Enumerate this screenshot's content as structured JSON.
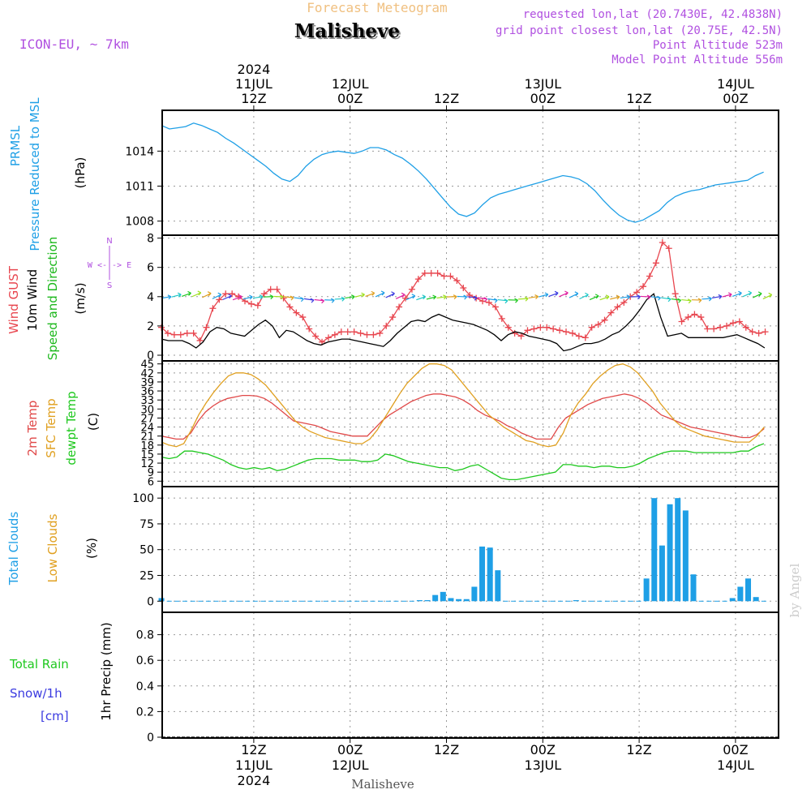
{
  "header": {
    "title": "Forecast Meteogram",
    "station": "Malisheve",
    "model": "ICON-EU, ~ 7km",
    "requested": "requested lon,lat (20.7430E, 42.4838N)",
    "grid_point": "grid point closest lon,lat (20.75E, 42.5N)",
    "point_altitude": "Point Altitude 523m",
    "model_altitude": "Model Point Altitude 556m",
    "credit": "by Angel",
    "footer_station": "Malisheve"
  },
  "time_axis": {
    "top_ticks": [
      {
        "hour": 12,
        "lines": [
          "2024",
          "11JUL",
          "12Z"
        ]
      },
      {
        "hour": 24,
        "lines": [
          "12JUL",
          "00Z"
        ]
      },
      {
        "hour": 36,
        "lines": [
          "12Z"
        ]
      },
      {
        "hour": 48,
        "lines": [
          "13JUL",
          "00Z"
        ]
      },
      {
        "hour": 60,
        "lines": [
          "12Z"
        ]
      },
      {
        "hour": 72,
        "lines": [
          "14JUL",
          "00Z"
        ]
      }
    ],
    "bottom_ticks": [
      {
        "hour": 12,
        "lines": [
          "12Z",
          "11JUL",
          "2024"
        ]
      },
      {
        "hour": 24,
        "lines": [
          "00Z",
          "12JUL"
        ]
      },
      {
        "hour": 36,
        "lines": [
          "12Z"
        ]
      },
      {
        "hour": 48,
        "lines": [
          "00Z",
          "13JUL"
        ]
      },
      {
        "hour": 60,
        "lines": [
          "12Z"
        ]
      },
      {
        "hour": 72,
        "lines": [
          "00Z",
          "14JUL"
        ]
      }
    ]
  },
  "colors": {
    "pressure": "#1e9fe6",
    "gust": "#e8464f",
    "wind10": "#000000",
    "wind_axis_label": "#1db81d",
    "temp2m": "#e04848",
    "sfc_temp": "#e0a020",
    "dewpt": "#1ec81e",
    "clouds": "#1e9fe6",
    "low_clouds": "#e0a020",
    "rain": "#1ec81e",
    "snow": "#3a3ae0",
    "header_purple": "#b050e0",
    "title_orange": "#f0c080"
  },
  "panel_labels": {
    "pressure": {
      "line1": "PRMSL",
      "line2": "Pressure Reduced to MSL",
      "unit": "(hPa)"
    },
    "wind": {
      "gust": "Wind GUST",
      "ten": "10m Wind",
      "speed": "Speed and Direction",
      "unit": "(m/s)",
      "compass_n": "N",
      "compass_s": "S",
      "compass_we": "W <-|-> E"
    },
    "temp": {
      "t2m": "2m Temp",
      "sfc": "SFC Temp",
      "dew": "dewpt Temp",
      "unit": "(C)"
    },
    "clouds": {
      "total": "Total Clouds",
      "low": "Low Clouds",
      "unit": "(%)"
    },
    "precip": {
      "rain": "Total Rain",
      "snow": "Snow/1h",
      "snow_unit": "[cm]",
      "axis": "1hr Precip (mm)"
    }
  },
  "chart_data": [
    {
      "type": "line",
      "title": "PRMSL Pressure Reduced to MSL",
      "ylabel": "(hPa)",
      "ylim": [
        1007,
        1017.5
      ],
      "yticks": [
        "1008",
        "1011",
        "1014"
      ],
      "x_start_hour": 1,
      "x_step_hours": 1,
      "series": [
        {
          "name": "PRMSL",
          "values": [
            1016.2,
            1015.9,
            1016.0,
            1016.1,
            1016.4,
            1016.2,
            1015.9,
            1015.6,
            1015.1,
            1014.7,
            1014.2,
            1013.7,
            1013.2,
            1012.7,
            1012.1,
            1011.6,
            1011.4,
            1011.9,
            1012.7,
            1013.3,
            1013.7,
            1013.9,
            1014.0,
            1013.9,
            1013.8,
            1014.0,
            1014.3,
            1014.3,
            1014.1,
            1013.7,
            1013.4,
            1012.9,
            1012.3,
            1011.6,
            1010.8,
            1010.0,
            1009.2,
            1008.6,
            1008.4,
            1008.7,
            1009.4,
            1010.0,
            1010.3,
            1010.5,
            1010.7,
            1010.9,
            1011.1,
            1011.3,
            1011.5,
            1011.7,
            1011.9,
            1011.8,
            1011.6,
            1011.2,
            1010.6,
            1009.8,
            1009.1,
            1008.5,
            1008.1,
            1007.9,
            1008.1,
            1008.5,
            1008.9,
            1009.6,
            1010.1,
            1010.4,
            1010.6,
            1010.7,
            1010.9,
            1011.1,
            1011.2,
            1011.3,
            1011.4,
            1011.5,
            1011.9,
            1012.2
          ]
        }
      ]
    },
    {
      "type": "line",
      "title": "Wind GUST / 10m Wind Speed and Direction",
      "ylabel": "(m/s)",
      "ylim": [
        0,
        8.2
      ],
      "yticks": [
        "0",
        "2",
        "4",
        "6",
        "8"
      ],
      "x_start_hour": 1,
      "x_step_hours": 1,
      "series": [
        {
          "name": "Wind GUST",
          "values": [
            1.9,
            1.5,
            1.4,
            1.4,
            1.5,
            1.5,
            1.0,
            1.9,
            3.2,
            3.8,
            4.2,
            4.2,
            4.0,
            3.7,
            3.5,
            3.4,
            4.2,
            4.5,
            4.5,
            3.9,
            3.3,
            2.9,
            2.6,
            1.8,
            1.3,
            0.9,
            1.2,
            1.4,
            1.6,
            1.6,
            1.6,
            1.5,
            1.4,
            1.4,
            1.5,
            2.0,
            2.6,
            3.3,
            3.9,
            4.5,
            5.2,
            5.6,
            5.6,
            5.6,
            5.4,
            5.4,
            5.1,
            4.6,
            4.1,
            3.9,
            3.7,
            3.6,
            3.3,
            2.5,
            1.9,
            1.5,
            1.3,
            1.7,
            1.8,
            1.9,
            1.9,
            1.8,
            1.7,
            1.6,
            1.5,
            1.3,
            1.2,
            1.9,
            2.1,
            2.4,
            2.9,
            3.3,
            3.6,
            4.0,
            4.3,
            4.7,
            5.4,
            6.3,
            7.7,
            7.3,
            4.2,
            2.3,
            2.6,
            2.8,
            2.6,
            1.8,
            1.8,
            1.9,
            2.0,
            2.2,
            2.3,
            1.9,
            1.6,
            1.5,
            1.6
          ]
        },
        {
          "name": "10m Wind",
          "values": [
            1.1,
            1.0,
            1.0,
            1.0,
            0.8,
            0.5,
            0.9,
            1.6,
            1.9,
            1.8,
            1.5,
            1.4,
            1.3,
            1.7,
            2.1,
            2.4,
            2.0,
            1.2,
            1.7,
            1.6,
            1.3,
            1.0,
            0.8,
            0.7,
            0.9,
            1.0,
            1.1,
            1.1,
            1.0,
            0.9,
            0.8,
            0.7,
            0.6,
            1.0,
            1.5,
            1.9,
            2.3,
            2.4,
            2.3,
            2.6,
            2.8,
            2.6,
            2.4,
            2.3,
            2.2,
            2.1,
            1.9,
            1.7,
            1.4,
            1.0,
            1.4,
            1.6,
            1.5,
            1.3,
            1.2,
            1.1,
            1.0,
            0.8,
            0.3,
            0.4,
            0.6,
            0.8,
            0.8,
            0.9,
            1.1,
            1.4,
            1.6,
            2.0,
            2.5,
            3.1,
            3.8,
            4.2,
            2.6,
            1.3,
            1.4,
            1.5,
            1.2,
            1.2,
            1.2,
            1.2,
            1.2,
            1.2,
            1.3,
            1.4,
            1.2,
            1.0,
            0.8,
            0.5
          ]
        }
      ]
    },
    {
      "type": "line",
      "title": "2m Temp / SFC Temp / dewpt Temp",
      "ylabel": "(C)",
      "ylim": [
        5,
        46
      ],
      "yticks": [
        "6",
        "9",
        "12",
        "15",
        "18",
        "21",
        "24",
        "27",
        "30",
        "33",
        "36",
        "39",
        "42",
        "45"
      ],
      "x_start_hour": 1,
      "x_step_hours": 1,
      "series": [
        {
          "name": "2m Temp",
          "values": [
            21,
            20.5,
            20,
            20,
            22,
            26,
            29,
            31,
            32.5,
            33.5,
            34,
            34.5,
            34.5,
            34.3,
            33.5,
            32,
            30,
            28,
            26,
            25.5,
            25,
            24.5,
            23.5,
            22.5,
            22,
            21.5,
            21,
            21,
            21,
            23.5,
            26,
            28,
            29.5,
            31,
            32.5,
            33.5,
            34.5,
            35,
            35,
            34.5,
            34,
            33,
            31.5,
            29.5,
            28,
            27,
            26,
            24.5,
            23.5,
            22,
            21,
            20,
            20,
            20,
            24,
            27,
            28.5,
            30,
            31.5,
            32.5,
            33.5,
            34,
            34.5,
            35,
            34.5,
            33.5,
            32,
            30,
            28,
            27,
            26,
            25,
            24,
            23.5,
            23,
            22.5,
            22,
            21.5,
            21,
            20.5,
            20.5,
            21.5,
            23.5
          ]
        },
        {
          "name": "SFC Temp",
          "values": [
            19,
            18,
            17.5,
            18.5,
            23,
            28,
            32,
            35.5,
            38.5,
            41,
            42,
            42,
            41.5,
            40,
            38,
            35,
            32,
            29,
            26,
            24,
            22.5,
            21.5,
            20.5,
            20,
            19.5,
            19,
            18.5,
            18.5,
            20,
            23,
            27,
            31,
            35,
            38.5,
            41,
            43.5,
            45,
            45,
            44.5,
            43,
            40,
            37,
            34,
            31,
            28,
            26,
            24,
            22.5,
            21,
            19.5,
            19,
            18,
            17.5,
            18,
            22,
            28,
            32,
            35,
            38.5,
            41,
            43,
            44.5,
            45,
            44,
            42,
            39,
            36,
            32,
            29,
            26,
            24,
            23,
            22,
            21,
            20.5,
            20,
            19.5,
            19,
            19,
            19,
            21,
            24
          ]
        },
        {
          "name": "dewpt Temp",
          "values": [
            14,
            13.5,
            14,
            16,
            16,
            15.5,
            15,
            14,
            13,
            11.5,
            10.5,
            10,
            10.5,
            10,
            10.5,
            9.5,
            10,
            11,
            12,
            13,
            13.5,
            13.5,
            13.5,
            13,
            13,
            13,
            12.5,
            12.5,
            13,
            15,
            14.5,
            13.5,
            12.5,
            12,
            11.5,
            11,
            10.5,
            10.5,
            9.5,
            10,
            11,
            11.5,
            10,
            8.5,
            7,
            6.5,
            6.5,
            7,
            7.5,
            8,
            8.5,
            9,
            11.5,
            11.5,
            11,
            11,
            10.5,
            11,
            11,
            10.5,
            10.5,
            11,
            12,
            13.5,
            14.5,
            15.5,
            16,
            16,
            16,
            15.5,
            15.5,
            15.5,
            15.5,
            15.5,
            15.5,
            16,
            16,
            17.5,
            18.5
          ]
        }
      ]
    },
    {
      "type": "bar",
      "title": "Total Clouds / Low Clouds",
      "ylabel": "(%)",
      "ylim": [
        -10,
        108
      ],
      "yticks": [
        "0",
        "25",
        "50",
        "75",
        "100"
      ],
      "x_start_hour": 1,
      "x_step_hours": 1,
      "series": [
        {
          "name": "Total Clouds",
          "values": [
            3,
            0,
            0,
            0,
            0,
            0,
            0,
            0,
            0,
            0,
            0,
            0,
            0,
            0,
            0,
            0,
            0,
            0,
            0,
            0,
            0,
            0,
            0,
            0,
            0,
            0,
            0,
            0,
            0,
            0,
            0,
            0,
            0,
            1,
            1,
            6,
            9,
            3,
            2,
            2,
            14,
            53,
            52,
            30,
            0,
            0,
            0,
            0,
            0,
            0,
            0,
            0,
            0,
            1,
            0,
            0,
            0,
            0,
            0,
            0,
            0,
            0,
            22,
            100,
            54,
            94,
            100,
            88,
            26,
            0,
            0,
            0,
            0,
            3,
            14,
            22,
            4,
            0
          ]
        },
        {
          "name": "Low Clouds",
          "values": [
            0,
            0,
            0,
            0,
            0,
            0,
            0,
            0,
            0,
            0,
            0,
            0,
            0,
            0,
            0,
            0,
            0,
            0,
            0,
            0,
            0,
            0,
            0,
            0,
            0,
            0,
            0,
            0,
            0,
            0,
            0,
            0,
            0,
            0,
            0,
            0,
            0,
            0,
            0,
            0,
            0,
            0,
            0,
            0,
            0,
            0,
            0,
            0,
            0,
            0,
            0,
            0,
            0,
            0,
            0,
            0,
            0,
            0,
            0,
            0,
            0,
            0,
            0,
            0,
            0,
            0,
            0,
            0,
            0,
            0,
            0,
            0,
            0,
            0,
            0,
            0,
            0,
            0
          ]
        }
      ]
    },
    {
      "type": "bar",
      "title": "1hr Precip (mm)",
      "ylabel": "1hr Precip (mm)",
      "ylim": [
        0,
        1.0
      ],
      "yticks": [
        "0",
        "0.2",
        "0.4",
        "0.6",
        "0.8"
      ],
      "series": [
        {
          "name": "Total Rain",
          "values": []
        },
        {
          "name": "Snow/1h",
          "values": []
        }
      ]
    }
  ]
}
